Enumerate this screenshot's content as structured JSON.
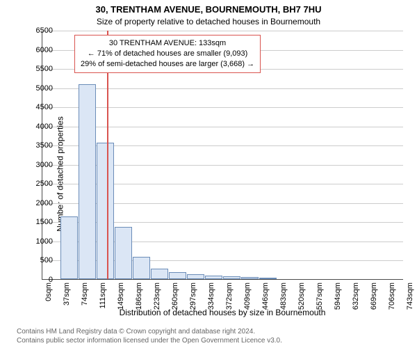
{
  "title": "30, TRENTHAM AVENUE, BOURNEMOUTH, BH7 7HU",
  "subtitle": "Size of property relative to detached houses in Bournemouth",
  "ylabel": "Number of detached properties",
  "xlabel": "Distribution of detached houses by size in Bournemouth",
  "chart": {
    "type": "histogram",
    "background_color": "#ffffff",
    "grid_color": "#cccccc",
    "axis_color": "#4a4a4a",
    "bar_fill": "#dbe6f5",
    "bar_border": "#6a8cb8",
    "ylim": [
      0,
      6500
    ],
    "ytick_step": 500,
    "yticks": [
      0,
      500,
      1000,
      1500,
      2000,
      2500,
      3000,
      3500,
      4000,
      4500,
      5000,
      5500,
      6000,
      6500
    ],
    "xticks": [
      "0sqm",
      "37sqm",
      "74sqm",
      "111sqm",
      "149sqm",
      "186sqm",
      "223sqm",
      "260sqm",
      "297sqm",
      "334sqm",
      "372sqm",
      "409sqm",
      "446sqm",
      "483sqm",
      "520sqm",
      "557sqm",
      "594sqm",
      "632sqm",
      "669sqm",
      "706sqm",
      "743sqm"
    ],
    "bin_width": 37,
    "values": [
      0,
      1640,
      5090,
      3550,
      1360,
      580,
      280,
      190,
      130,
      100,
      70,
      50,
      30,
      0,
      0,
      0,
      0,
      0,
      0,
      0
    ],
    "label_fontsize": 12,
    "tick_fontsize": 11
  },
  "marker": {
    "line_color": "#d9534f",
    "value_sqm": 133,
    "box_border": "#d9534f",
    "box_bg": "#ffffff",
    "lines": [
      "30 TRENTHAM AVENUE: 133sqm",
      "← 71% of detached houses are smaller (9,093)",
      "29% of semi-detached houses are larger (3,668) →"
    ]
  },
  "footer": {
    "line1": "Contains HM Land Registry data © Crown copyright and database right 2024.",
    "line2": "Contains public sector information licensed under the Open Government Licence v3.0.",
    "color": "#666666",
    "fontsize": 10
  }
}
